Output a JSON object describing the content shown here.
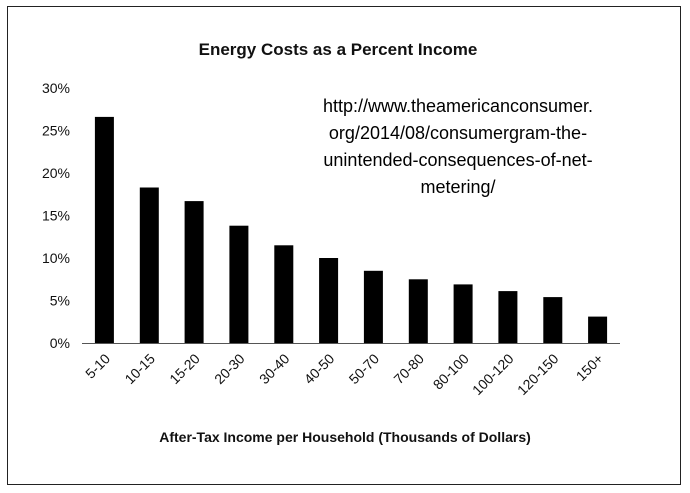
{
  "chart_data": {
    "type": "bar",
    "title": "Energy Costs as a Percent Income",
    "xlabel": "After-Tax Income per Household (Thousands of Dollars)",
    "ylabel": "",
    "categories": [
      "5-10",
      "10-15",
      "15-20",
      "20-30",
      "30-40",
      "40-50",
      "50-70",
      "70-80",
      "80-100",
      "100-120",
      "120-150",
      "150+"
    ],
    "values": [
      26.6,
      18.3,
      16.7,
      13.8,
      11.5,
      10.0,
      8.5,
      7.5,
      6.9,
      6.1,
      5.4,
      3.1
    ],
    "ylim": [
      0,
      30
    ],
    "yticks": [
      0,
      5,
      10,
      15,
      20,
      25,
      30
    ],
    "ytick_labels": [
      "0%",
      "5%",
      "10%",
      "15%",
      "20%",
      "25%",
      "30%"
    ],
    "grid": false,
    "bar_color": "#000000",
    "annotation": [
      "http://www.theamericanconsumer.",
      "org/2014/08/consumergram-the-",
      "unintended-consequences-of-net-",
      "metering/"
    ]
  }
}
